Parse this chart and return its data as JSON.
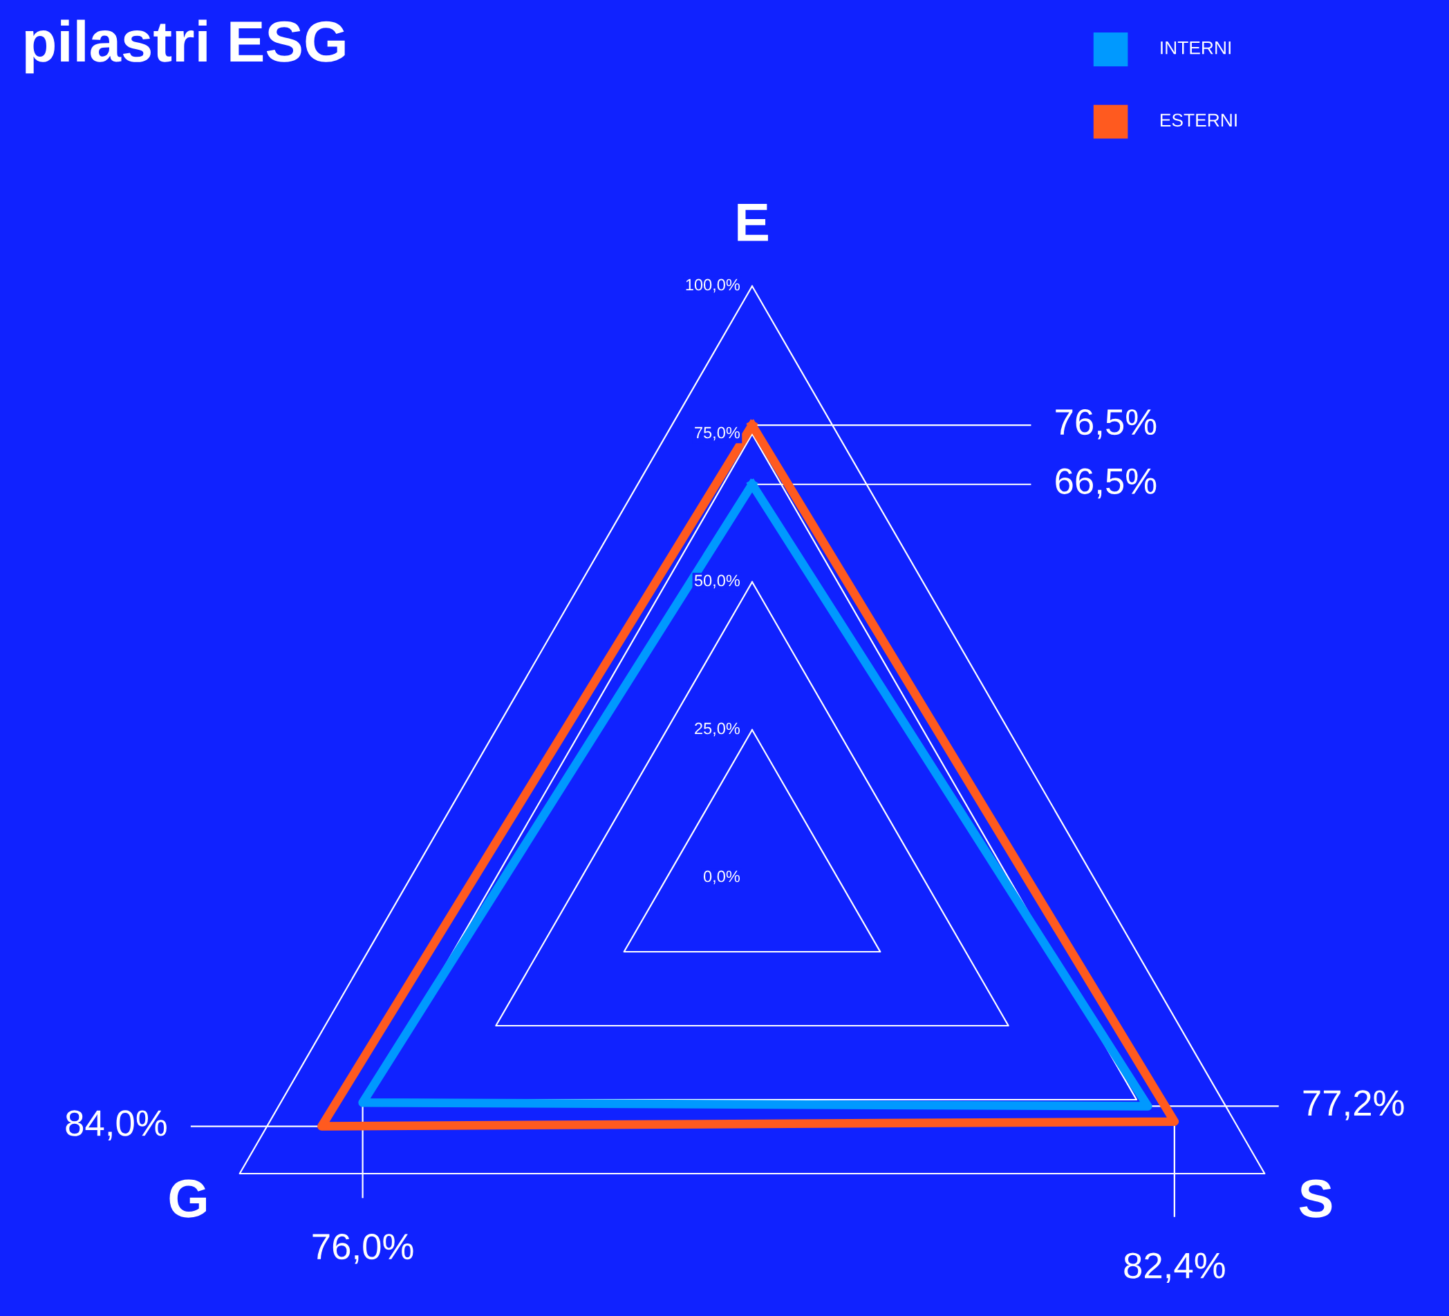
{
  "chart_data": {
    "type": "radar",
    "title": "pilastri ESG",
    "categories": [
      "E",
      "S",
      "G"
    ],
    "series": [
      {
        "name": "INTERNI",
        "color": "#0099ff",
        "values": [
          66.5,
          77.2,
          76.0
        ],
        "value_labels": [
          "66,5%",
          "77,2%",
          "76,0%"
        ]
      },
      {
        "name": "ESTERNI",
        "color": "#ff5a1f",
        "values": [
          76.5,
          82.4,
          84.0
        ],
        "value_labels": [
          "76,5%",
          "82,4%",
          "84,0%"
        ]
      }
    ],
    "ylim": [
      0,
      100
    ],
    "yticks": [
      {
        "value": 0,
        "label": "0,0%"
      },
      {
        "value": 25,
        "label": "25,0%"
      },
      {
        "value": 50,
        "label": "50,0%"
      },
      {
        "value": 75,
        "label": "75,0%"
      },
      {
        "value": 100,
        "label": "100,0%"
      }
    ],
    "grid": true,
    "legend": "top right",
    "line_style": "solid"
  }
}
